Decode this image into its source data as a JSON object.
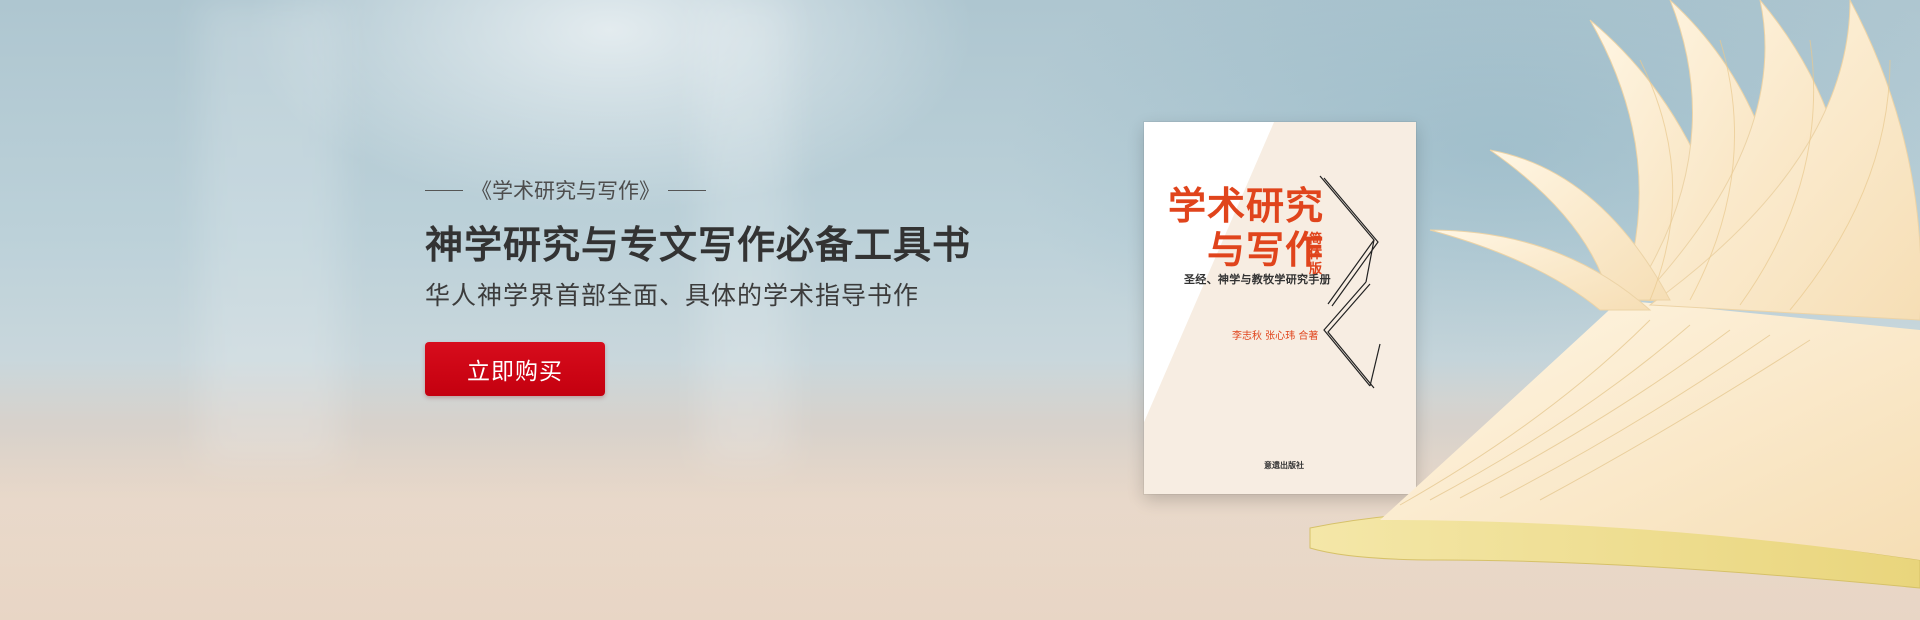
{
  "banner": {
    "series_title": "《学术研究与写作》",
    "headline": "神学研究与专文写作必备工具书",
    "subline": "华人神学界首部全面、具体的学术指导书作",
    "buy_button_label": "立即购买"
  },
  "book_cover": {
    "title_line1": "学术研究",
    "title_line2": "与写作",
    "edition": "简体版",
    "subtitle": "圣经、神学与教牧学研究手册",
    "authors": "李志秋 张心玮 合著",
    "publisher": "意遗出版社"
  },
  "colors": {
    "accent_red": "#c4000f",
    "cover_title": "#e0441c",
    "heading_text": "#333333"
  }
}
